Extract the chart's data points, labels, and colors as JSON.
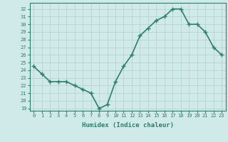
{
  "x": [
    0,
    1,
    2,
    3,
    4,
    5,
    6,
    7,
    8,
    9,
    10,
    11,
    12,
    13,
    14,
    15,
    16,
    17,
    18,
    19,
    20,
    21,
    22,
    23
  ],
  "y": [
    24.5,
    23.5,
    22.5,
    22.5,
    22.5,
    22.0,
    21.5,
    21.0,
    19.0,
    19.5,
    22.5,
    24.5,
    26.0,
    28.5,
    29.5,
    30.5,
    31.0,
    32.0,
    32.0,
    30.0,
    30.0,
    29.0,
    27.0,
    26.0
  ],
  "line_color": "#2e7d6e",
  "marker": "+",
  "marker_size": 4,
  "xlabel": "Humidex (Indice chaleur)",
  "xlim": [
    -0.5,
    23.5
  ],
  "ylim_min": 18.7,
  "ylim_max": 32.8,
  "yticks": [
    19,
    20,
    21,
    22,
    23,
    24,
    25,
    26,
    27,
    28,
    29,
    30,
    31,
    32
  ],
  "xticks": [
    0,
    1,
    2,
    3,
    4,
    5,
    6,
    7,
    8,
    9,
    10,
    11,
    12,
    13,
    14,
    15,
    16,
    17,
    18,
    19,
    20,
    21,
    22,
    23
  ],
  "bg_color": "#d0eaea",
  "grid_color": "#b0d0d0",
  "line_width": 1.2,
  "tick_label_color": "#2e7d6e",
  "xlabel_color": "#2e7d6e",
  "tick_fontsize": 5.0,
  "xlabel_fontsize": 6.5
}
